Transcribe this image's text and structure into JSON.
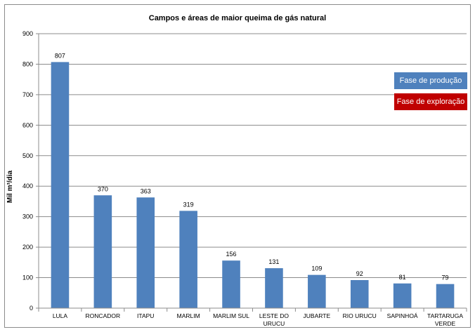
{
  "chart_data": {
    "type": "bar",
    "title": "Campos e áreas de maior queima de gás natural",
    "xlabel": "",
    "ylabel": "Mil m³/dia",
    "ylim": [
      0,
      900
    ],
    "yticks": [
      0,
      100,
      200,
      300,
      400,
      500,
      600,
      700,
      800,
      900
    ],
    "grid": true,
    "categories": [
      [
        "LULA"
      ],
      [
        "RONCADOR"
      ],
      [
        "ITAPU"
      ],
      [
        "MARLIM"
      ],
      [
        "MARLIM SUL"
      ],
      [
        "LESTE DO",
        "URUCU"
      ],
      [
        "JUBARTE"
      ],
      [
        "RIO URUCU"
      ],
      [
        "SAPINHOÁ"
      ],
      [
        "TARTARUGA",
        "VERDE"
      ]
    ],
    "values": [
      807,
      370,
      363,
      319,
      156,
      131,
      109,
      92,
      81,
      79
    ],
    "bar_colors": [
      "#4f81bd",
      "#4f81bd",
      "#4f81bd",
      "#4f81bd",
      "#4f81bd",
      "#4f81bd",
      "#4f81bd",
      "#4f81bd",
      "#4f81bd",
      "#4f81bd"
    ],
    "legend_placement": "right",
    "legend": [
      {
        "label": "Fase de produção",
        "color": "#4f81bd"
      },
      {
        "label": "Fase de exploração",
        "color": "#c00000"
      }
    ]
  }
}
